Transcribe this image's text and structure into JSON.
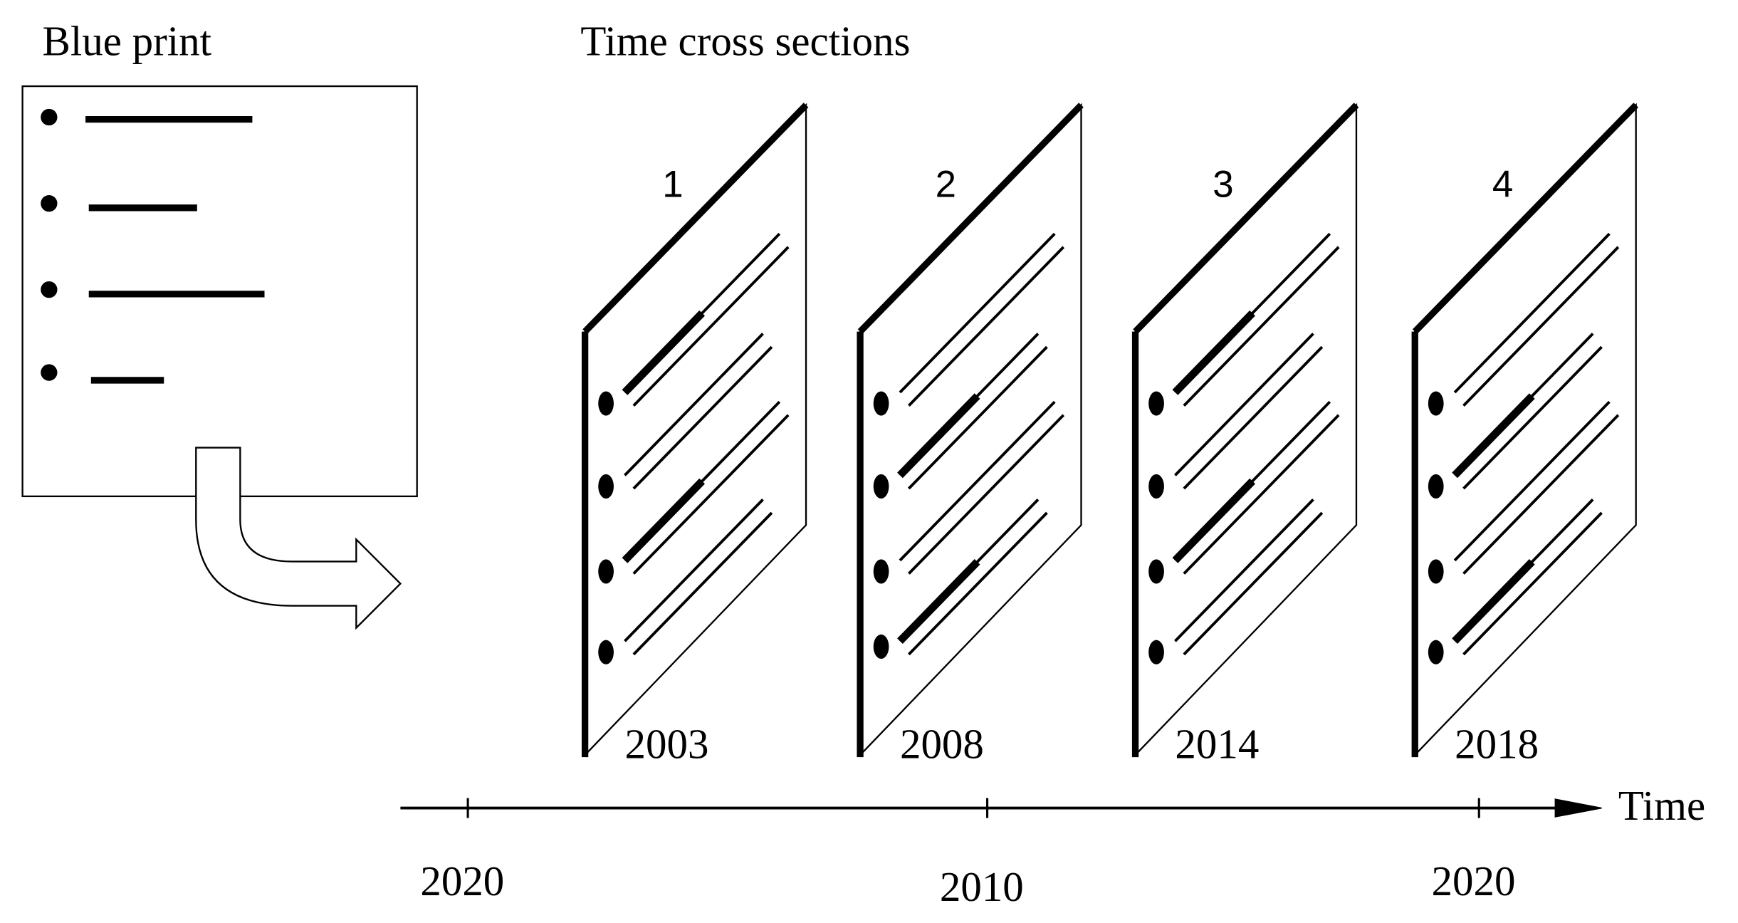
{
  "blueprint": {
    "title": "Blue print"
  },
  "cross_sections": {
    "title": "Time cross sections",
    "panels": [
      {
        "number": "1",
        "year": "2003"
      },
      {
        "number": "2",
        "year": "2008"
      },
      {
        "number": "3",
        "year": "2014"
      },
      {
        "number": "4",
        "year": "2018"
      }
    ]
  },
  "timeline": {
    "label": "Time",
    "ticks": [
      "2020",
      "2010",
      "2020"
    ]
  }
}
